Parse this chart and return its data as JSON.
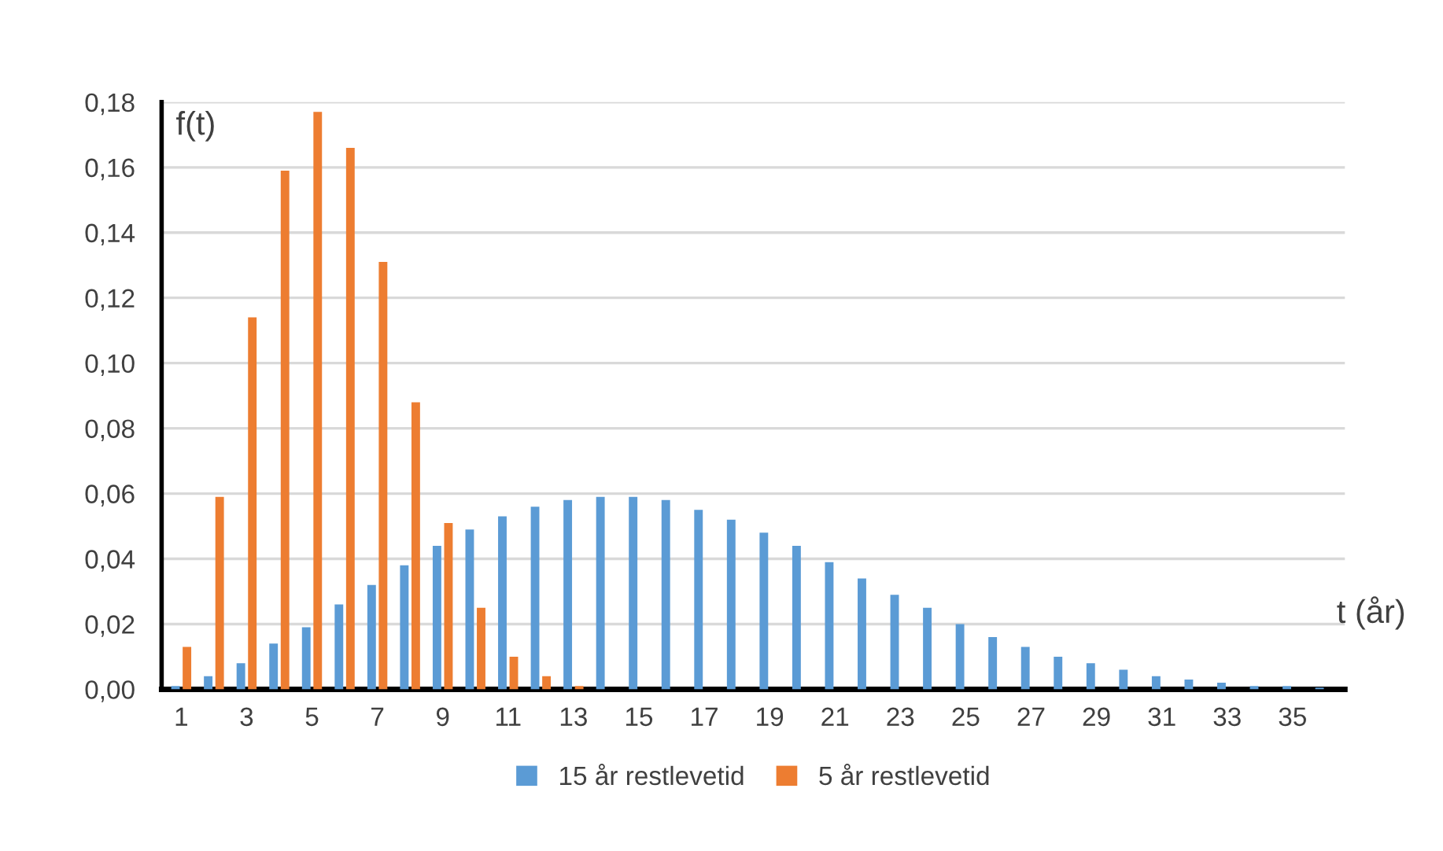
{
  "chart_data": {
    "type": "bar",
    "xlabel": "t (år)",
    "ylabel": "f(t)",
    "categories": [
      "1",
      null,
      "3",
      null,
      "5",
      null,
      "7",
      null,
      "9",
      null,
      "11",
      null,
      "13",
      null,
      "15",
      null,
      "17",
      null,
      "19",
      null,
      "21",
      null,
      "23",
      null,
      "25",
      null,
      "27",
      null,
      "29",
      null,
      "31",
      null,
      "33",
      null,
      "35",
      null
    ],
    "series": [
      {
        "name": "15 år restlevetid",
        "color": "#5b9bd5",
        "values": [
          0.001,
          0.004,
          0.008,
          0.014,
          0.019,
          0.026,
          0.032,
          0.038,
          0.044,
          0.049,
          0.053,
          0.056,
          0.058,
          0.059,
          0.059,
          0.058,
          0.055,
          0.052,
          0.048,
          0.044,
          0.039,
          0.034,
          0.029,
          0.025,
          0.02,
          0.016,
          0.013,
          0.01,
          0.008,
          0.006,
          0.004,
          0.003,
          0.002,
          0.001,
          0.001,
          0.0005
        ]
      },
      {
        "name": "5 år restlevetid",
        "color": "#ed7d31",
        "values": [
          0.013,
          0.059,
          0.114,
          0.159,
          0.177,
          0.166,
          0.131,
          0.088,
          0.051,
          0.025,
          0.01,
          0.004,
          0.001,
          0,
          0,
          0,
          0,
          0,
          0,
          0,
          0,
          0,
          0,
          0,
          0,
          0,
          0,
          0,
          0,
          0,
          0,
          0,
          0,
          0,
          0,
          0
        ]
      }
    ],
    "ylim": [
      0,
      0.18
    ],
    "yticks": [
      {
        "value": 0,
        "label": "0,00"
      },
      {
        "value": 0.02,
        "label": "0,02"
      },
      {
        "value": 0.04,
        "label": "0,04"
      },
      {
        "value": 0.06,
        "label": "0,06"
      },
      {
        "value": 0.08,
        "label": "0,08"
      },
      {
        "value": 0.1,
        "label": "0,10"
      },
      {
        "value": 0.12,
        "label": "0,12"
      },
      {
        "value": 0.14,
        "label": "0,14"
      },
      {
        "value": 0.16,
        "label": "0,16"
      },
      {
        "value": 0.18,
        "label": "0,18"
      }
    ],
    "grid": "y",
    "legend": "bottom"
  }
}
